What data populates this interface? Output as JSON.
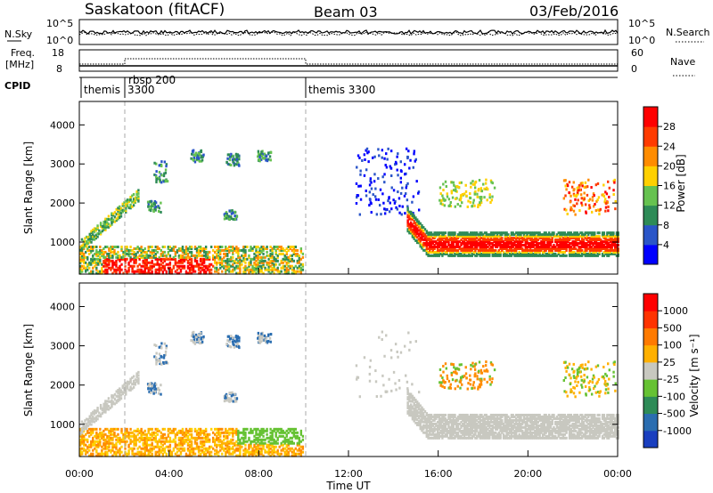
{
  "header": {
    "station": "Saskatoon (fitACF)",
    "beam": "Beam 03",
    "date": "03/Feb/2016"
  },
  "panels": {
    "nsky": {
      "left_label": "N.Sky",
      "left_ticks": [
        "10^5",
        "10^0"
      ],
      "right_ticks": [
        "10^5",
        "10^0"
      ],
      "right_label": "N.Search"
    },
    "freq": {
      "left_label_1": "Freq.",
      "left_label_2": "[MHz]",
      "left_ticks": [
        "18",
        "8"
      ],
      "right_ticks": [
        "60",
        "0"
      ],
      "right_label": "Nave"
    },
    "cpid": {
      "label": "CPID",
      "segments": [
        {
          "label": "themis",
          "start_hour": 0.0
        },
        {
          "label": "rbsp 200",
          "start_hour": 2.0
        },
        {
          "label": "3300",
          "start_hour": 2.0
        },
        {
          "label": "themis 3300",
          "start_hour": 10.0
        }
      ]
    }
  },
  "chart_data": [
    {
      "type": "heatmap",
      "name": "power",
      "xlabel": "",
      "ylabel": "Slant Range [km]",
      "xlim": [
        0,
        24
      ],
      "ylim": [
        180,
        4600
      ],
      "yticks": [
        "1000",
        "2000",
        "3000",
        "4000"
      ],
      "ytick_values": [
        1000,
        2000,
        3000,
        4000
      ],
      "colorbar": {
        "label": "Power [dB]",
        "ticks": [
          "28",
          "24",
          "20",
          "16",
          "12",
          "8",
          "4"
        ],
        "colors": [
          "#0000ff",
          "#2a55c8",
          "#2e8b57",
          "#66c250",
          "#ffd000",
          "#ff8c00",
          "#ff3b00",
          "#ff0000"
        ]
      }
    },
    {
      "type": "heatmap",
      "name": "velocity",
      "xlabel": "Time UT",
      "ylabel": "Slant Range [km]",
      "xlim": [
        0,
        24
      ],
      "ylim": [
        180,
        4600
      ],
      "xticks": [
        "00:00",
        "04:00",
        "08:00",
        "12:00",
        "16:00",
        "20:00",
        "00:00"
      ],
      "xtick_values": [
        0,
        4,
        8,
        12,
        16,
        20,
        24
      ],
      "yticks": [
        "1000",
        "2000",
        "3000",
        "4000"
      ],
      "ytick_values": [
        1000,
        2000,
        3000,
        4000
      ],
      "colorbar": {
        "label": "Velocity [m s⁻¹]",
        "ticks": [
          "1000",
          "500",
          "100",
          "25",
          "-25",
          "-100",
          "-500",
          "-1000"
        ],
        "colors": [
          "#1a3fbf",
          "#2a6db0",
          "#2e8b57",
          "#66c233",
          "#c8c8c0",
          "#ffb000",
          "#ff7a00",
          "#ff3300",
          "#ff0000"
        ]
      }
    }
  ]
}
